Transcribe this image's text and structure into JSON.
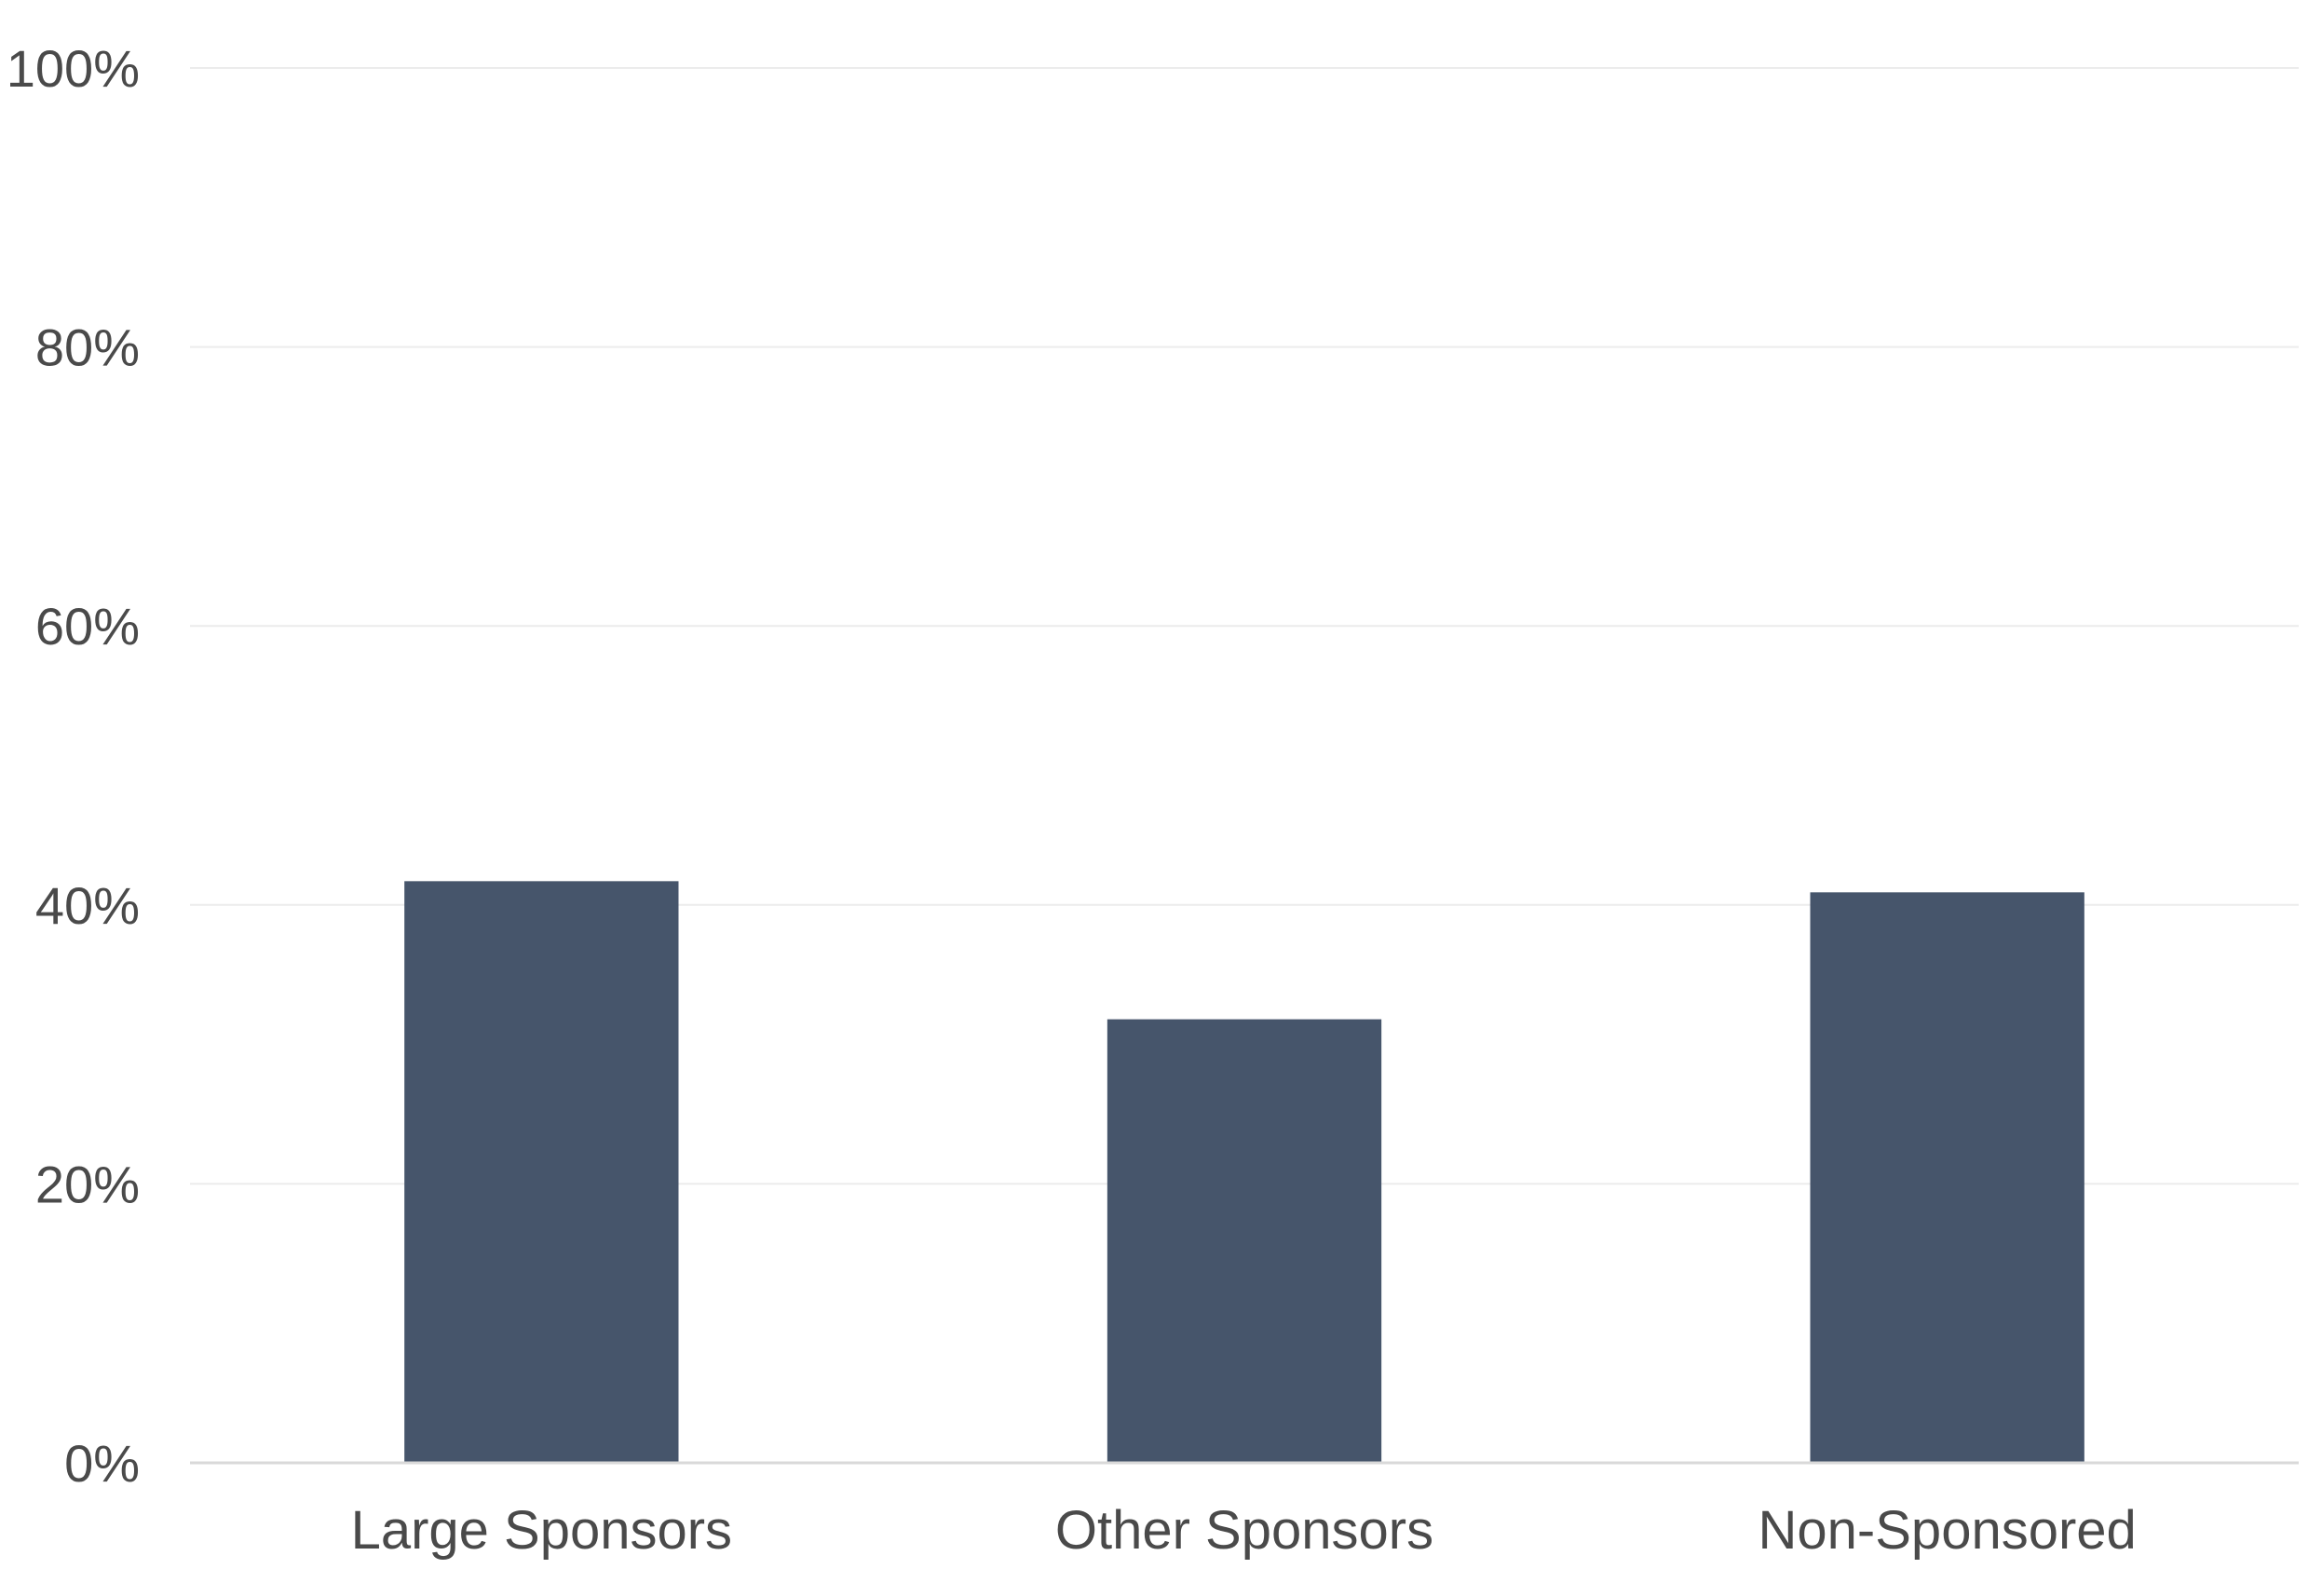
{
  "chart_data": {
    "type": "bar",
    "title": "",
    "xlabel": "",
    "ylabel": "",
    "categories": [
      "Large Sponsors",
      "Other Sponsors",
      "Non-Sponsored"
    ],
    "values": [
      41.7,
      31.8,
      40.9
    ],
    "ylim": [
      0,
      100
    ],
    "yticks": [
      0,
      20,
      40,
      60,
      80,
      100
    ],
    "ytick_labels": [
      "0%",
      "20%",
      "40%",
      "60%",
      "80%",
      "100%"
    ],
    "grid": true,
    "legend": "none",
    "bar_color": "#46556b"
  }
}
